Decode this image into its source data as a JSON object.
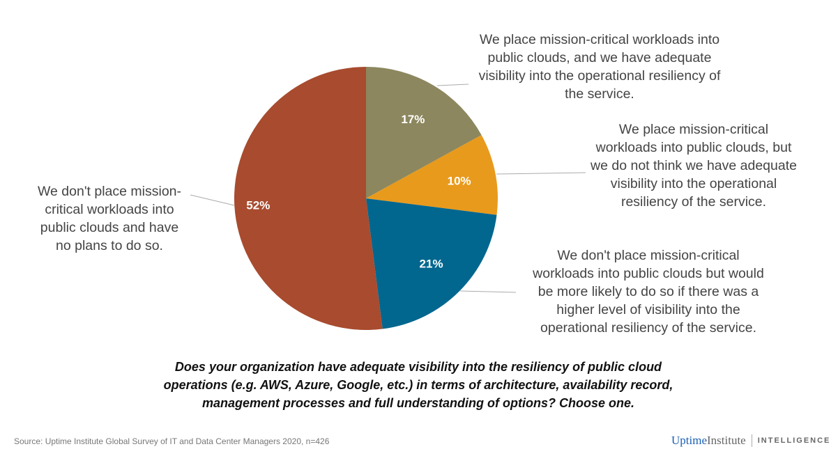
{
  "chart_data": {
    "type": "pie",
    "title": "Does your organization have adequate visibility into the resiliency of public cloud\noperations (e.g. AWS, Azure, Google, etc.) in terms of architecture, availability record,\nmanagement processes and full understanding of options? Choose one.",
    "start": "12 o'clock, clockwise",
    "slices": [
      {
        "label": "We place mission-critical workloads into\npublic clouds, and we have adequate\nvisibility into the operational resiliency of\nthe service.",
        "value": 17,
        "data_label": "17%",
        "color": "#8c875e"
      },
      {
        "label": "We place mission-critical\nworkloads into public clouds, but\nwe do not think we have adequate\nvisibility into the operational\nresiliency of the service.",
        "value": 10,
        "data_label": "10%",
        "color": "#e89a1c"
      },
      {
        "label": "We don't place mission-critical\nworkloads into public clouds but would\nbe more likely to do so if there was a\nhigher level of visibility into the\noperational resiliency of the service.",
        "value": 21,
        "data_label": "21%",
        "color": "#02678f"
      },
      {
        "label": "We don't place mission-\ncritical workloads into\npublic clouds and have\nno plans to do so.",
        "value": 52,
        "data_label": "52%",
        "color": "#a84b2e"
      }
    ]
  },
  "source": "Source: Uptime Institute Global Survey of IT and Data Center Managers 2020, n=426",
  "logo": {
    "part1": "Uptime",
    "part2": "Institute",
    "part3": "INTELLIGENCE"
  }
}
